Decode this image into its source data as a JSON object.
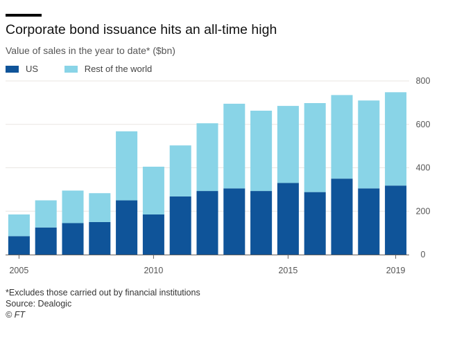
{
  "header": {
    "title": "Corporate bond issuance hits an all-time high",
    "subtitle": "Value of sales in the year to date* ($bn)"
  },
  "legend": [
    {
      "label": "US",
      "color": "#0f5499"
    },
    {
      "label": "Rest of the world",
      "color": "#89d4e7"
    }
  ],
  "chart_data": {
    "type": "bar",
    "stacked": true,
    "categories": [
      "2005",
      "2006",
      "2007",
      "2008",
      "2009",
      "2010",
      "2011",
      "2012",
      "2013",
      "2014",
      "2015",
      "2016",
      "2017",
      "2018",
      "2019"
    ],
    "series": [
      {
        "name": "US",
        "color": "#0f5499",
        "values": [
          85,
          125,
          145,
          150,
          250,
          185,
          268,
          293,
          305,
          293,
          330,
          288,
          350,
          305,
          318
        ]
      },
      {
        "name": "Rest of the world",
        "color": "#89d4e7",
        "values": [
          100,
          125,
          150,
          133,
          318,
          220,
          235,
          312,
          390,
          370,
          355,
          410,
          385,
          405,
          430
        ]
      }
    ],
    "xticks": [
      {
        "category": "2005",
        "label": "2005"
      },
      {
        "category": "2010",
        "label": "2010"
      },
      {
        "category": "2015",
        "label": "2015"
      },
      {
        "category": "2019",
        "label": "2019"
      }
    ],
    "yticks": [
      0,
      200,
      400,
      600,
      800
    ],
    "ylim": [
      0,
      800
    ],
    "yaxis_position": "right",
    "grid": true,
    "gridColor": "#e9e6e2",
    "axisColor": "#66605c",
    "tickLabelColor": "#555555"
  },
  "footer": {
    "note": "*Excludes those carried out by financial institutions",
    "source": "Source: Dealogic",
    "credit": "© FT"
  }
}
